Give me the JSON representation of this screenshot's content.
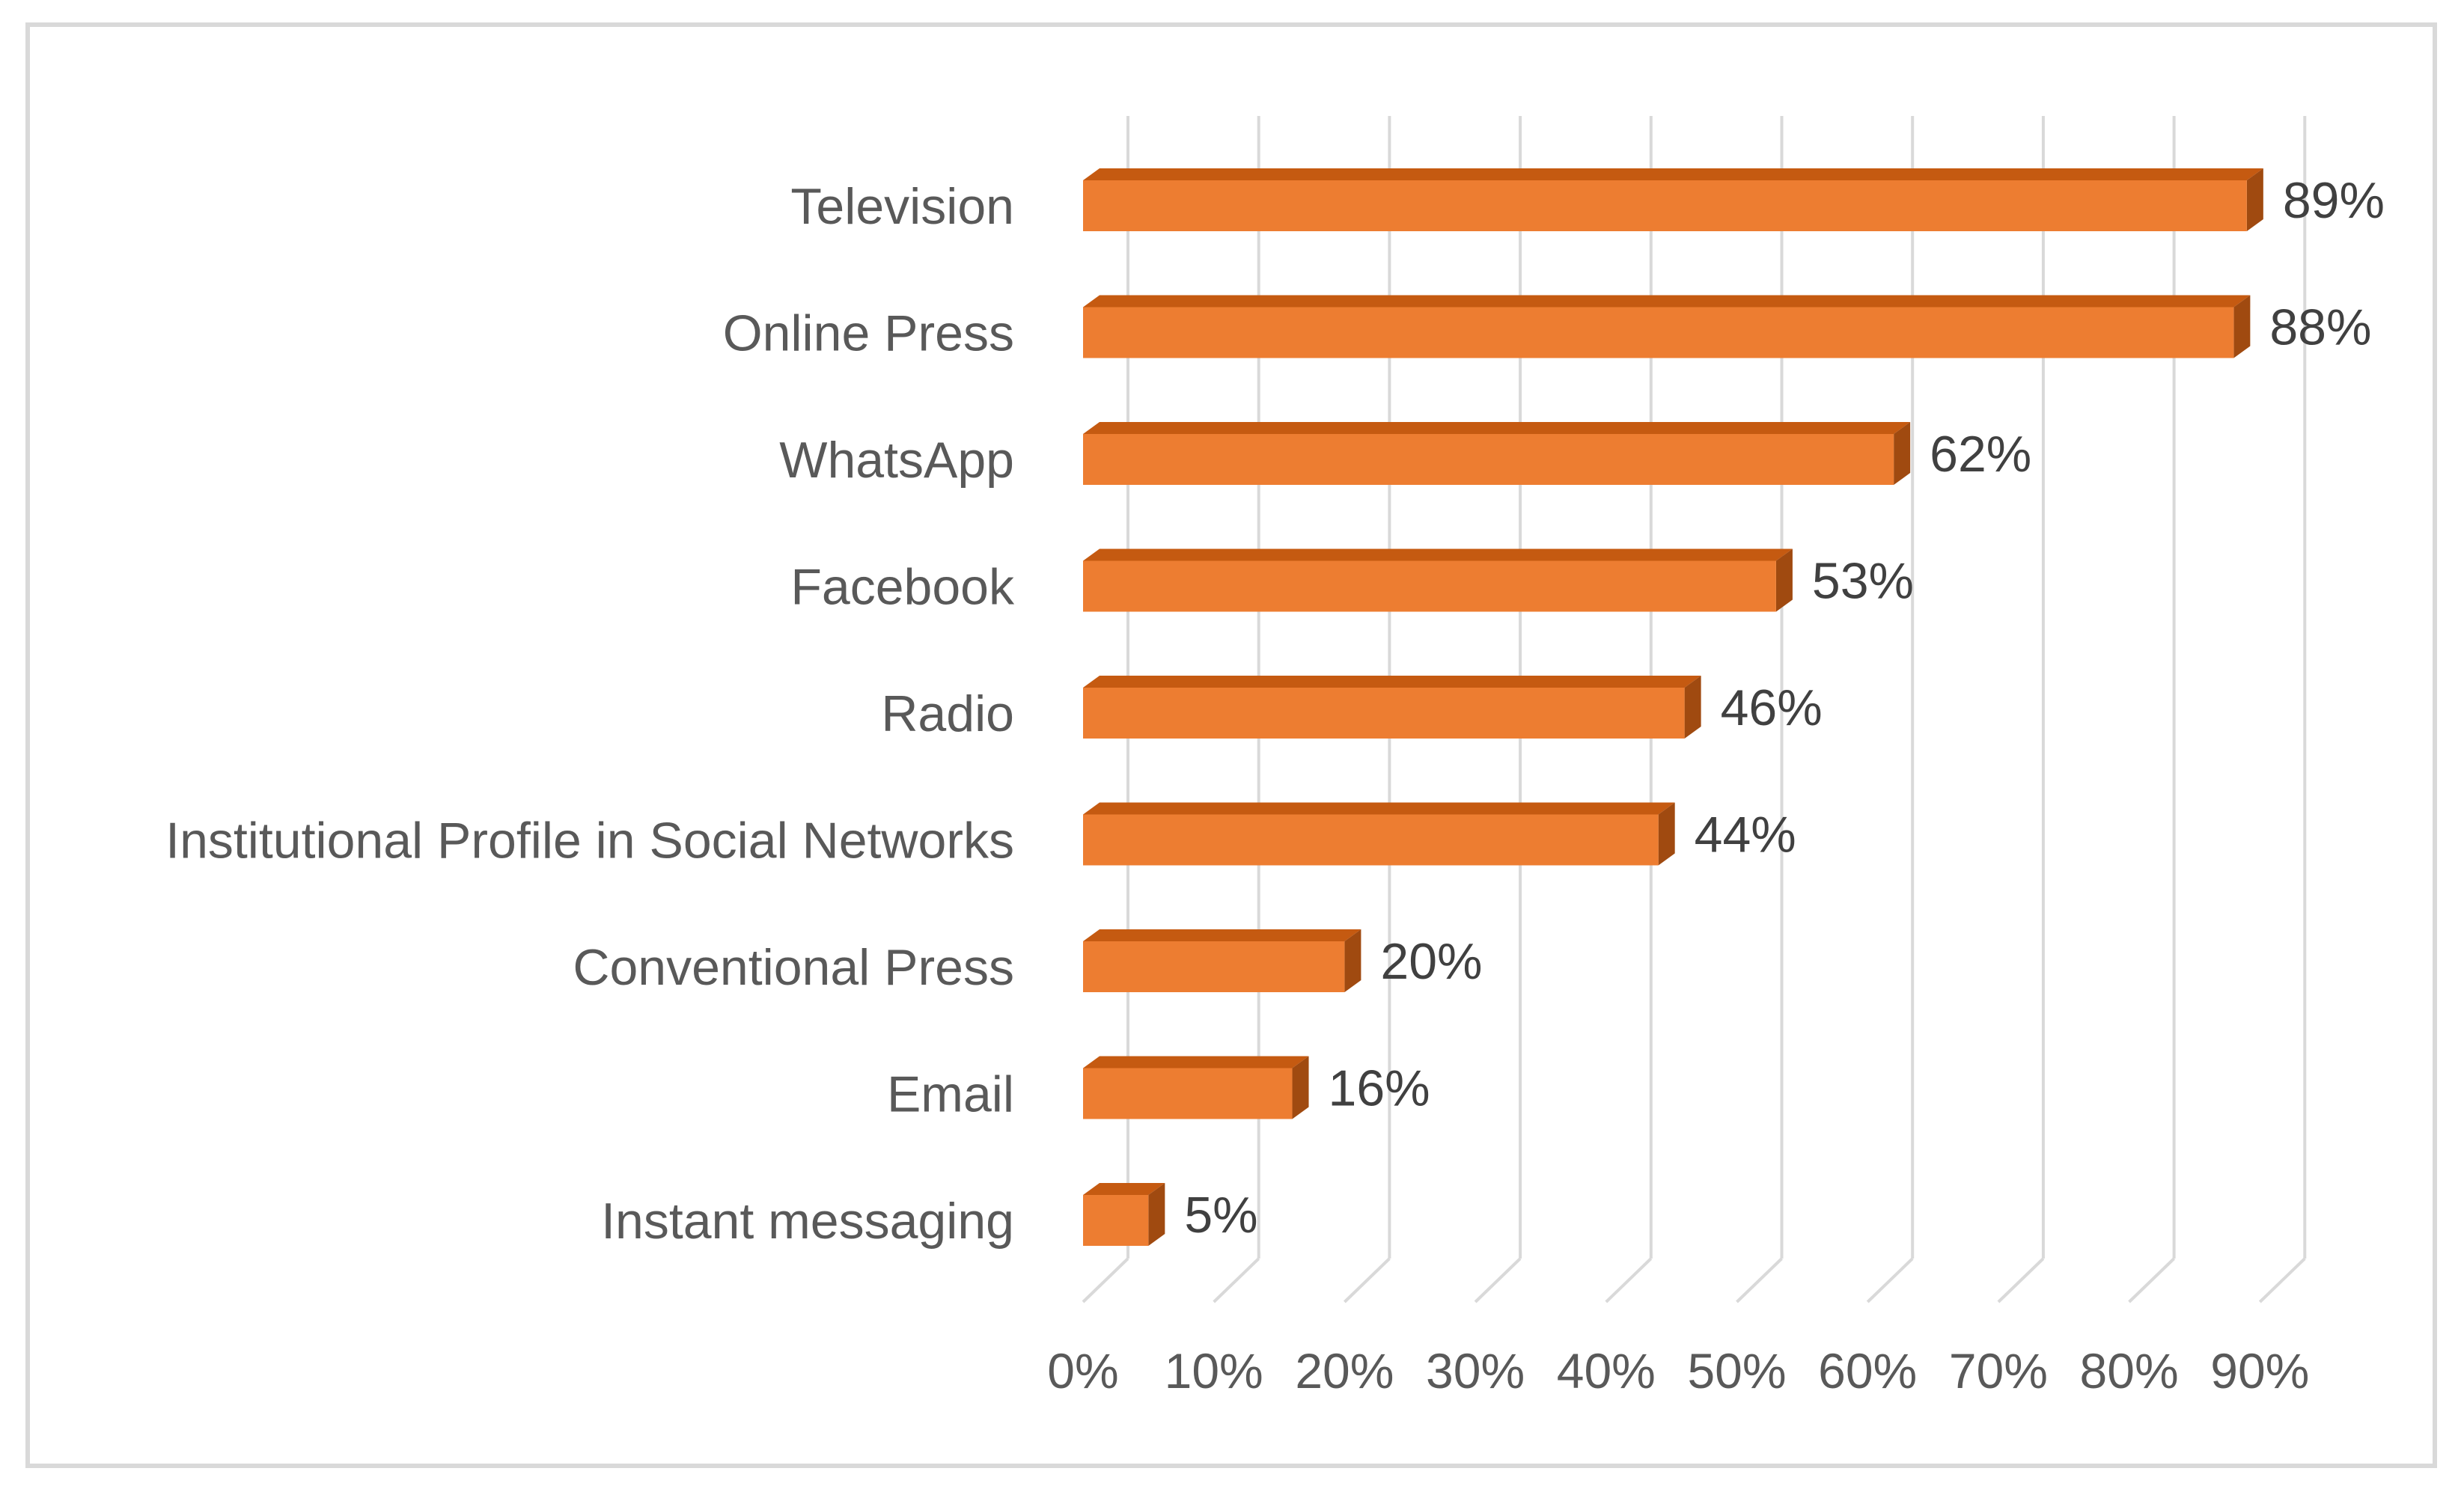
{
  "chart_data": {
    "type": "bar",
    "orientation": "horizontal",
    "style": "3d",
    "categories": [
      "Television",
      "Online Press",
      "WhatsApp",
      "Facebook",
      "Radio",
      "Institutional Profile in Social Networks",
      "Conventional Press",
      "Email",
      "Instant messaging"
    ],
    "values": [
      89,
      88,
      62,
      53,
      46,
      44,
      20,
      16,
      5
    ],
    "data_labels": [
      "89%",
      "88%",
      "62%",
      "53%",
      "46%",
      "44%",
      "20%",
      "16%",
      "5%"
    ],
    "xlim": [
      0,
      90
    ],
    "x_ticks": [
      0,
      10,
      20,
      30,
      40,
      50,
      60,
      70,
      80,
      90
    ],
    "x_tick_labels": [
      "0%",
      "10%",
      "20%",
      "30%",
      "40%",
      "50%",
      "60%",
      "70%",
      "80%",
      "90%"
    ],
    "title": "",
    "xlabel": "",
    "ylabel": "",
    "grid": true,
    "legend": "none",
    "colors": {
      "bar_front": "#ED7D31",
      "bar_top": "#C55A11",
      "bar_side": "#A04A10",
      "gridline": "#d9d9d9",
      "frame": "#d9d9d9",
      "text": "#595959"
    }
  }
}
